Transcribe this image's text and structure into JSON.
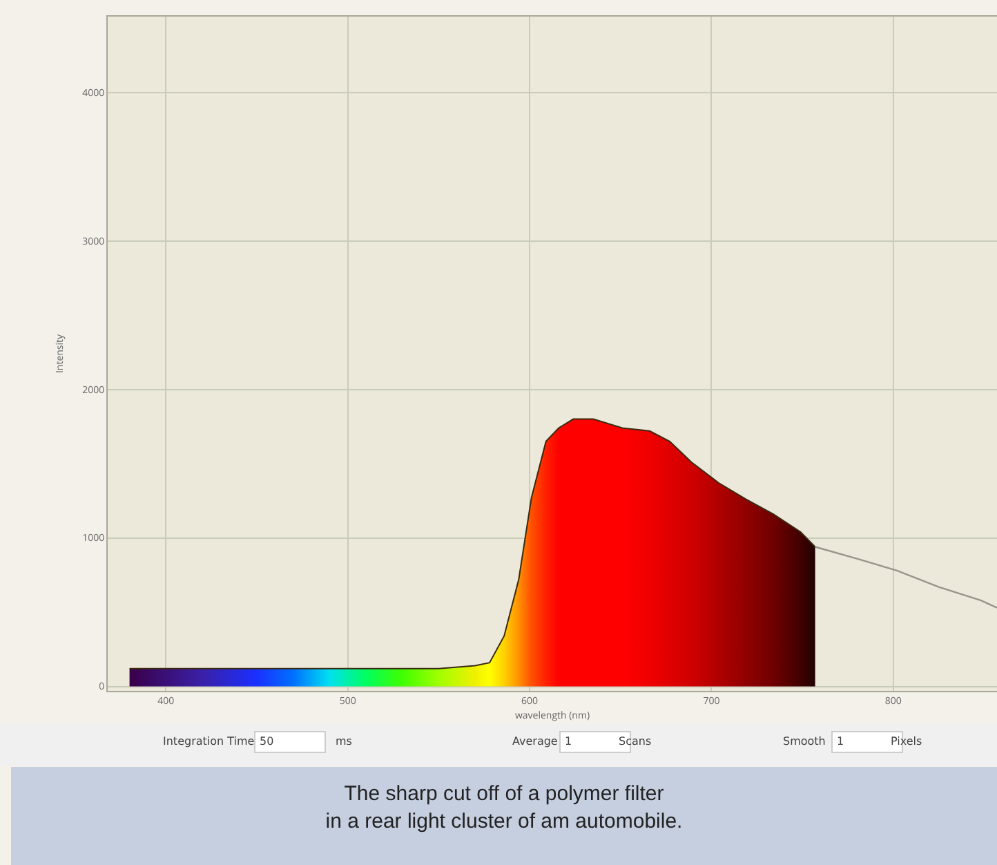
{
  "chart_data": {
    "type": "area",
    "xlabel": "wavelength (nm)",
    "ylabel": "Intensity",
    "xlim": [
      368,
      857
    ],
    "ylim": [
      -30,
      4510
    ],
    "xticks": [
      400,
      500,
      600,
      700,
      800
    ],
    "yticks": [
      0,
      1000,
      2000,
      3000,
      4000
    ],
    "grid": true,
    "series": [
      {
        "x": [
          380,
          420,
          450,
          470,
          490,
          510,
          530,
          550,
          570,
          578,
          586,
          594,
          601,
          609,
          616,
          624,
          635,
          651,
          666,
          677,
          689,
          704,
          719,
          734,
          749,
          757
        ],
        "values": [
          120,
          120,
          120,
          120,
          120,
          120,
          120,
          120,
          140,
          160,
          340,
          720,
          1270,
          1650,
          1740,
          1800,
          1800,
          1740,
          1720,
          1650,
          1510,
          1370,
          1260,
          1160,
          1040,
          940
        ],
        "colors": [
          "#3a0048",
          "#3a20a8",
          "#1a30ff",
          "#0070ff",
          "#00e0f0",
          "#00ff60",
          "#40ff00",
          "#a0ff00",
          "#f0f000",
          "#ffff00",
          "#ffd000",
          "#ff9000",
          "#ff5000",
          "#ff2000",
          "#ff0000",
          "#ff0000",
          "#ff0000",
          "#ff0000",
          "#f00000",
          "#e00000",
          "#d00000",
          "#b00000",
          "#900000",
          "#700000",
          "#400000",
          "#200000"
        ]
      },
      {
        "type": "line",
        "color": "#9a948a",
        "x": [
          757,
          780,
          802,
          825,
          848,
          857
        ],
        "values": [
          940,
          860,
          780,
          670,
          580,
          530
        ]
      }
    ],
    "annotations": [
      "The sharp cut off of a polymer filter\nin a rear light cluster of am automobile.",
      "Integration Time",
      "50",
      "ms",
      "Average",
      "1",
      "Scans",
      "Smooth",
      "1",
      "Pixels"
    ]
  }
}
